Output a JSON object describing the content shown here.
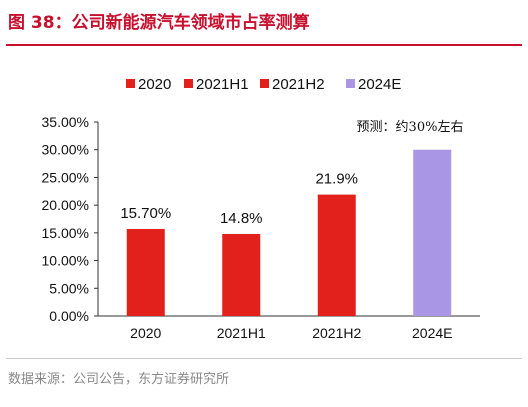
{
  "header": {
    "title": "图 38：公司新能源汽车领域市占率测算"
  },
  "footer": {
    "source": "数据来源：公司公告，东方证券研究所"
  },
  "chart_data": {
    "type": "bar",
    "title": "",
    "xlabel": "",
    "ylabel": "",
    "categories": [
      "2020",
      "2021H1",
      "2021H2",
      "2024E"
    ],
    "values": [
      15.7,
      14.8,
      21.9,
      30.0
    ],
    "data_labels": [
      "15.70%",
      "14.8%",
      "21.9%",
      ""
    ],
    "bar_colors": [
      "#e3211c",
      "#e3211c",
      "#e3211c",
      "#a996e4"
    ],
    "ylim": [
      0,
      35
    ],
    "yticks": [
      0,
      5,
      10,
      15,
      20,
      25,
      30,
      35
    ],
    "ytick_labels": [
      "0.00%",
      "5.00%",
      "10.00%",
      "15.00%",
      "20.00%",
      "25.00%",
      "30.00%",
      "35.00%"
    ],
    "legend": {
      "placement": "top",
      "entries": [
        {
          "label": "2020",
          "color": "#e3211c"
        },
        {
          "label": "2021H1",
          "color": "#e3211c"
        },
        {
          "label": "2021H2",
          "color": "#e3211c"
        },
        {
          "label": "2024E",
          "color": "#a996e4"
        }
      ]
    },
    "annotation": "预测：约30%左右",
    "grid": false
  }
}
